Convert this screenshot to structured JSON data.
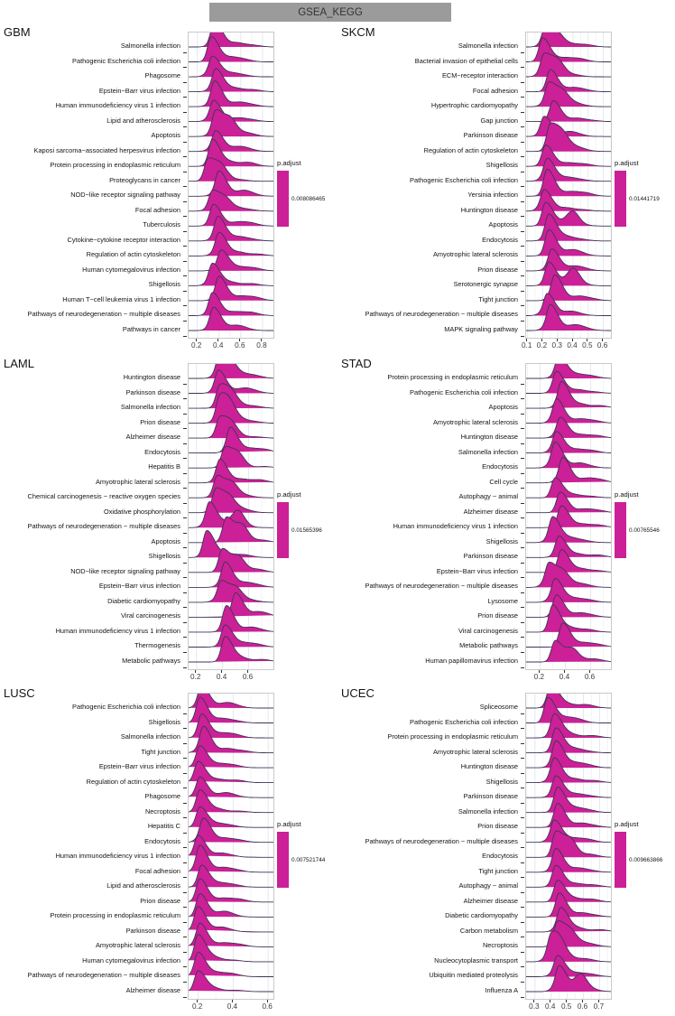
{
  "header": {
    "title": "GSEA_KEGG"
  },
  "colors": {
    "fill": "#cb2097",
    "stroke": "#3f3554",
    "grid_major": "#e3e9f1",
    "grid_minor": "#f1f4f8",
    "panel_border": "#c9c9c9",
    "banner_bg": "#9b9b9b"
  },
  "chart_data": [
    {
      "type": "ridgeline",
      "code": "GBM",
      "legend": {
        "title": "p.adjust",
        "value": "0.008086465"
      },
      "x_ticks": [
        0.2,
        0.4,
        0.6,
        0.8
      ],
      "domain": [
        0.12,
        0.9
      ],
      "pathways": [
        {
          "name": "Salmonella infection",
          "peak": 0.36
        },
        {
          "name": "Pathogenic Escherichia coli infection",
          "peak": 0.33
        },
        {
          "name": "Phagosome",
          "peak": 0.34
        },
        {
          "name": "Epstein−Barr virus infection",
          "peak": 0.37
        },
        {
          "name": "Human immunodeficiency virus 1 infection",
          "peak": 0.36
        },
        {
          "name": "Lipid and atherosclerosis",
          "peak": 0.35
        },
        {
          "name": "Apoptosis",
          "peak": 0.37,
          "bump": 0.5
        },
        {
          "name": "Kaposi sarcoma−associated herpesvirus infection",
          "peak": 0.37
        },
        {
          "name": "Protein processing in endoplasmic reticulum",
          "peak": 0.34
        },
        {
          "name": "Proteoglycans in cancer",
          "peak": 0.3,
          "bump": 0.42
        },
        {
          "name": "NOD−like receptor signaling pathway",
          "peak": 0.4
        },
        {
          "name": "Focal adhesion",
          "peak": 0.34,
          "bump": 0.46
        },
        {
          "name": "Tuberculosis",
          "peak": 0.35
        },
        {
          "name": "Cytokine−cytokine receptor interaction",
          "peak": 0.39
        },
        {
          "name": "Regulation of actin cytoskeleton",
          "peak": 0.4
        },
        {
          "name": "Human cytomegalovirus infection",
          "peak": 0.42
        },
        {
          "name": "Shigellosis",
          "peak": 0.34
        },
        {
          "name": "Human T−cell leukemia virus 1 infection",
          "peak": 0.4
        },
        {
          "name": "Pathways of neurodegeneration − multiple diseases",
          "peak": 0.34
        },
        {
          "name": "Pathways in cancer",
          "peak": 0.35
        }
      ]
    },
    {
      "type": "ridgeline",
      "code": "SKCM",
      "legend": {
        "title": "p.adjust",
        "value": "0.01441719"
      },
      "x_ticks": [
        0.1,
        0.2,
        0.3,
        0.4,
        0.5,
        0.6
      ],
      "domain": [
        0.09,
        0.65
      ],
      "pathways": [
        {
          "name": "Salmonella infection",
          "peak": 0.22,
          "bump": 0.3
        },
        {
          "name": "Bacterial invasion of epithelial cells",
          "peak": 0.2
        },
        {
          "name": "ECM−receptor interaction",
          "peak": 0.21,
          "bump": 0.3
        },
        {
          "name": "Focal adhesion",
          "peak": 0.25
        },
        {
          "name": "Hypertrophic cardiomyopathy",
          "peak": 0.24,
          "bump": 0.33
        },
        {
          "name": "Gap junction",
          "peak": 0.27
        },
        {
          "name": "Parkinson disease",
          "peak": 0.21
        },
        {
          "name": "Regulation of actin cytoskeleton",
          "peak": 0.25,
          "bump": 0.33
        },
        {
          "name": "Shigellosis",
          "peak": 0.22
        },
        {
          "name": "Pathogenic Escherichia coli infection",
          "peak": 0.23
        },
        {
          "name": "Yersinia infection",
          "peak": 0.23
        },
        {
          "name": "Huntington disease",
          "peak": 0.21
        },
        {
          "name": "Apoptosis",
          "peak": 0.22,
          "bump": 0.4
        },
        {
          "name": "Endocytosis",
          "peak": 0.24
        },
        {
          "name": "Amyotrophic lateral sclerosis",
          "peak": 0.24
        },
        {
          "name": "Prion disease",
          "peak": 0.26
        },
        {
          "name": "Serotonergic synapse",
          "peak": 0.24,
          "bump": 0.4
        },
        {
          "name": "Tight junction",
          "peak": 0.28
        },
        {
          "name": "Pathways of neurodegeneration − multiple diseases",
          "peak": 0.23
        },
        {
          "name": "MAPK signaling pathway",
          "peak": 0.25
        }
      ]
    },
    {
      "type": "ridgeline",
      "code": "LAML",
      "legend": {
        "title": "p.adjust",
        "value": "0.01565396"
      },
      "x_ticks": [
        0.2,
        0.4,
        0.6
      ],
      "domain": [
        0.14,
        0.79
      ],
      "pathways": [
        {
          "name": "Huntington disease",
          "peak": 0.38,
          "bump": 0.47
        },
        {
          "name": "Parkinson disease",
          "peak": 0.37
        },
        {
          "name": "Salmonella infection",
          "peak": 0.38,
          "bump": 0.47
        },
        {
          "name": "Prion disease",
          "peak": 0.38,
          "bump": 0.46
        },
        {
          "name": "Alzheimer disease",
          "peak": 0.38,
          "bump": 0.47
        },
        {
          "name": "Endocytosis",
          "peak": 0.46
        },
        {
          "name": "Hepatitis B",
          "peak": 0.42,
          "bump": 0.52
        },
        {
          "name": "Amyotrophic lateral sclerosis",
          "peak": 0.38
        },
        {
          "name": "Chemical carcinogenesis − reactive oxygen species",
          "peak": 0.36,
          "bump": 0.47
        },
        {
          "name": "Oxidative phosphorylation",
          "peak": 0.35,
          "bump": 0.45
        },
        {
          "name": "Pathways of neurodegeneration − multiple diseases",
          "peak": 0.3,
          "bump": 0.52
        },
        {
          "name": "Apoptosis",
          "peak": 0.43,
          "bump": 0.55
        },
        {
          "name": "Shigellosis",
          "peak": 0.28
        },
        {
          "name": "NOD−like receptor signaling pathway",
          "peak": 0.4,
          "bump": 0.52
        },
        {
          "name": "Epstein−Barr virus infection",
          "peak": 0.42
        },
        {
          "name": "Diabetic cardiomyopathy",
          "peak": 0.39,
          "bump": 0.5
        },
        {
          "name": "Viral carcinogenesis",
          "peak": 0.5
        },
        {
          "name": "Human immunodeficiency virus 1 infection",
          "peak": 0.43
        },
        {
          "name": "Thermogenesis",
          "peak": 0.42
        },
        {
          "name": "Metabolic pathways",
          "peak": 0.42
        }
      ]
    },
    {
      "type": "ridgeline",
      "code": "STAD",
      "legend": {
        "title": "p.adjust",
        "value": "0.00765546"
      },
      "x_ticks": [
        0.2,
        0.4,
        0.6
      ],
      "domain": [
        0.09,
        0.76
      ],
      "pathways": [
        {
          "name": "Protein processing in endoplasmic reticulum",
          "peak": 0.35
        },
        {
          "name": "Pathogenic Escherichia coli infection",
          "peak": 0.33
        },
        {
          "name": "Apoptosis",
          "peak": 0.37
        },
        {
          "name": "Amyotrophic lateral sclerosis",
          "peak": 0.33
        },
        {
          "name": "Huntington disease",
          "peak": 0.36
        },
        {
          "name": "Salmonella infection",
          "peak": 0.33
        },
        {
          "name": "Endocytosis",
          "peak": 0.32
        },
        {
          "name": "Cell cycle",
          "peak": 0.38
        },
        {
          "name": "Autophagy − animal",
          "peak": 0.32
        },
        {
          "name": "Alzheimer disease",
          "peak": 0.36
        },
        {
          "name": "Human immunodeficiency virus 1 infection",
          "peak": 0.37
        },
        {
          "name": "Shigellosis",
          "peak": 0.3
        },
        {
          "name": "Parkinson disease",
          "peak": 0.35
        },
        {
          "name": "Epstein−Barr virus infection",
          "peak": 0.37
        },
        {
          "name": "Pathways of neurodegeneration − multiple diseases",
          "peak": 0.27,
          "bump": 0.38
        },
        {
          "name": "Lysosome",
          "peak": 0.32
        },
        {
          "name": "Prion disease",
          "peak": 0.33
        },
        {
          "name": "Viral carcinogenesis",
          "peak": 0.3
        },
        {
          "name": "Metabolic pathways",
          "peak": 0.38
        },
        {
          "name": "Human papillomavirus infection",
          "peak": 0.32,
          "bump": 0.45
        }
      ]
    },
    {
      "type": "ridgeline",
      "code": "LUSC",
      "legend": {
        "title": "p.adjust",
        "value": "0.007521744"
      },
      "x_ticks": [
        0.2,
        0.4,
        0.6
      ],
      "domain": [
        0.145,
        0.63
      ],
      "pathways": [
        {
          "name": "Pathogenic Escherichia coli infection",
          "peak": 0.22
        },
        {
          "name": "Shigellosis",
          "peak": 0.21
        },
        {
          "name": "Salmonella infection",
          "peak": 0.22
        },
        {
          "name": "Tight junction",
          "peak": 0.23
        },
        {
          "name": "Epstein−Barr virus infection",
          "peak": 0.21
        },
        {
          "name": "Regulation of actin cytoskeleton",
          "peak": 0.2
        },
        {
          "name": "Phagosome",
          "peak": 0.21
        },
        {
          "name": "Necroptosis",
          "peak": 0.21
        },
        {
          "name": "Hepatitis C",
          "peak": 0.21
        },
        {
          "name": "Endocytosis",
          "peak": 0.23
        },
        {
          "name": "Human immunodeficiency virus 1 infection",
          "peak": 0.2
        },
        {
          "name": "Focal adhesion",
          "peak": 0.21
        },
        {
          "name": "Lipid and atherosclerosis",
          "peak": 0.22
        },
        {
          "name": "Prion disease",
          "peak": 0.21
        },
        {
          "name": "Protein processing in endoplasmic reticulum",
          "peak": 0.21
        },
        {
          "name": "Parkinson disease",
          "peak": 0.2
        },
        {
          "name": "Amyotrophic lateral sclerosis",
          "peak": 0.21
        },
        {
          "name": "Human cytomegalovirus infection",
          "peak": 0.2
        },
        {
          "name": "Pathways of neurodegeneration − multiple diseases",
          "peak": 0.2
        },
        {
          "name": "Alzheimer disease",
          "peak": 0.2
        }
      ]
    },
    {
      "type": "ridgeline",
      "code": "UCEC",
      "legend": {
        "title": "p.adjust",
        "value": "0.009663866"
      },
      "x_ticks": [
        0.3,
        0.4,
        0.5,
        0.6,
        0.7
      ],
      "domain": [
        0.245,
        0.77
      ],
      "pathways": [
        {
          "name": "Spliceosome",
          "peak": 0.4
        },
        {
          "name": "Pathogenic Escherichia coli infection",
          "peak": 0.38
        },
        {
          "name": "Protein processing in endoplasmic reticulum",
          "peak": 0.42
        },
        {
          "name": "Amyotrophic lateral sclerosis",
          "peak": 0.43
        },
        {
          "name": "Huntington disease",
          "peak": 0.43
        },
        {
          "name": "Shigellosis",
          "peak": 0.42
        },
        {
          "name": "Parkinson disease",
          "peak": 0.43
        },
        {
          "name": "Salmonella infection",
          "peak": 0.44
        },
        {
          "name": "Prion disease",
          "peak": 0.44
        },
        {
          "name": "Pathways of neurodegeneration − multiple diseases",
          "peak": 0.42
        },
        {
          "name": "Endocytosis",
          "peak": 0.43,
          "bump": 0.52
        },
        {
          "name": "Tight junction",
          "peak": 0.43
        },
        {
          "name": "Autophagy − animal",
          "peak": 0.43
        },
        {
          "name": "Alzheimer disease",
          "peak": 0.44
        },
        {
          "name": "Diabetic cardiomyopathy",
          "peak": 0.45
        },
        {
          "name": "Carbon metabolism",
          "peak": 0.46
        },
        {
          "name": "Necroptosis",
          "peak": 0.44,
          "bump": 0.52
        },
        {
          "name": "Nucleocytoplasmic transport",
          "peak": 0.4,
          "bump": 0.46
        },
        {
          "name": "Ubiquitin mediated proteolysis",
          "peak": 0.44
        },
        {
          "name": "Influenza A",
          "peak": 0.45,
          "bump": 0.58
        }
      ]
    }
  ]
}
